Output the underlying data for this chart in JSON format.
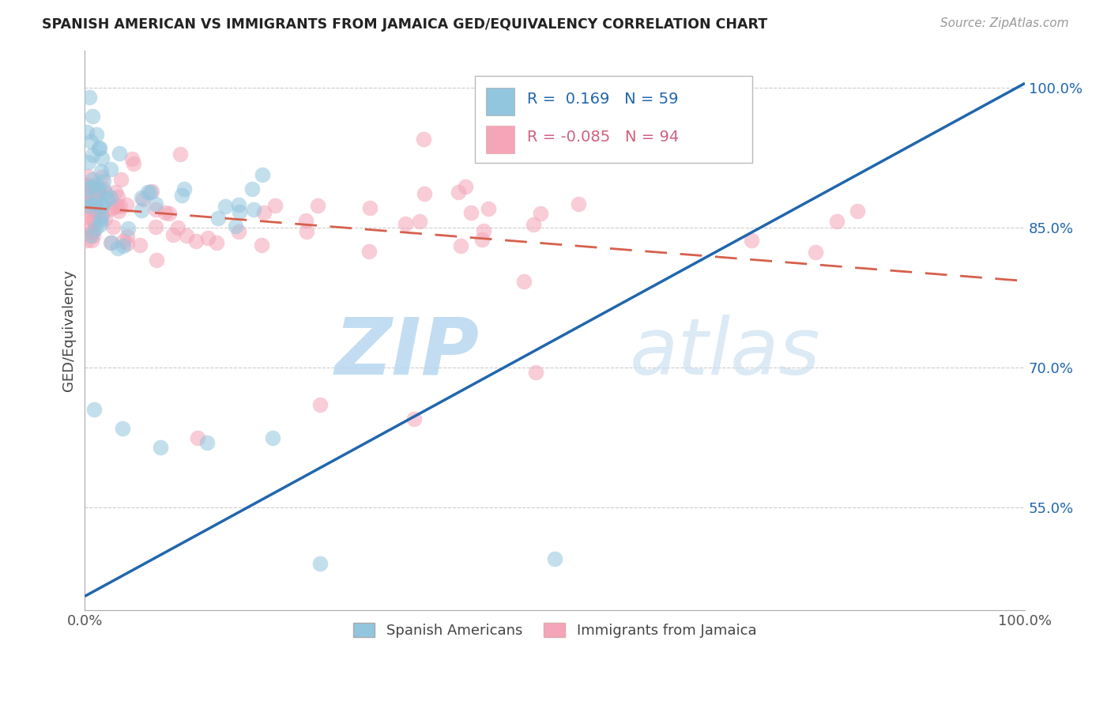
{
  "title": "SPANISH AMERICAN VS IMMIGRANTS FROM JAMAICA GED/EQUIVALENCY CORRELATION CHART",
  "source": "Source: ZipAtlas.com",
  "ylabel": "GED/Equivalency",
  "xlim": [
    0,
    1.0
  ],
  "ylim": [
    0.44,
    1.04
  ],
  "yticks": [
    0.55,
    0.7,
    0.85,
    1.0
  ],
  "ytick_labels": [
    "55.0%",
    "70.0%",
    "85.0%",
    "100.0%"
  ],
  "xticks": [
    0.0,
    1.0
  ],
  "xtick_labels": [
    "0.0%",
    "100.0%"
  ],
  "blue_color": "#92c5de",
  "pink_color": "#f4a5b8",
  "blue_line_color": "#2166ac",
  "pink_line_color": "#d6604d",
  "legend_label_blue": "Spanish Americans",
  "legend_label_pink": "Immigrants from Jamaica",
  "watermark_zip": "ZIP",
  "watermark_atlas": "atlas",
  "r_blue": 0.169,
  "n_blue": 59,
  "r_pink": -0.085,
  "n_pink": 94,
  "blue_line_x0": 0.0,
  "blue_line_y0": 0.455,
  "blue_line_x1": 1.0,
  "blue_line_y1": 1.005,
  "pink_line_x0": 0.0,
  "pink_line_y0": 0.872,
  "pink_line_x1": 1.0,
  "pink_line_y1": 0.793
}
